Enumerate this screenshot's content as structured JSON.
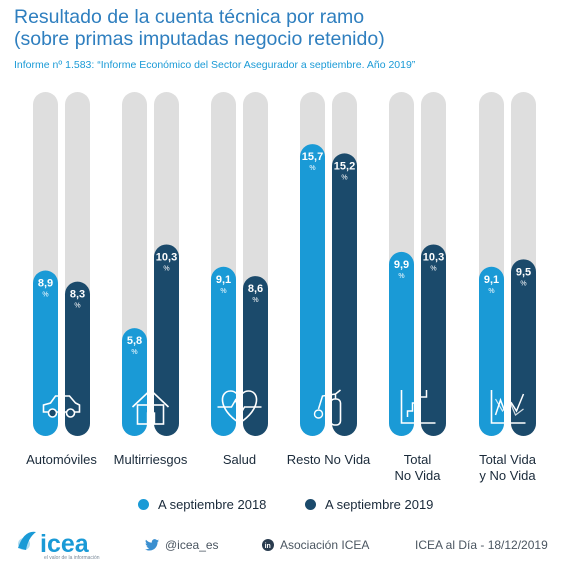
{
  "header": {
    "title_line1": "Resultado de la cuenta técnica por ramo",
    "title_line2": "(sobre primas imputadas negocio retenido)",
    "subtitle": "Informe nº 1.583: “Informe Económico del Sector Asegurador a septiembre. Año 2019”"
  },
  "colors": {
    "series_2018": "#1a9ad6",
    "series_2019": "#1b4a6b",
    "track": "#dedede",
    "icon": "#ffffff"
  },
  "chart_data": {
    "type": "bar",
    "categories": [
      "Automóviles",
      "Multirriesgos",
      "Salud",
      "Resto No Vida",
      "Total No Vida",
      "Total Vida y No Vida"
    ],
    "category_lines": [
      [
        "Automóviles"
      ],
      [
        "Multirriesgos"
      ],
      [
        "Salud"
      ],
      [
        "Resto No Vida"
      ],
      [
        "Total",
        "No Vida"
      ],
      [
        "Total Vida",
        "y No Vida"
      ]
    ],
    "category_icons": [
      "car-icon",
      "house-icon",
      "heart-pulse-icon",
      "fire-extinguisher-icon",
      "rising-chart-icon",
      "zigzag-chart-icon"
    ],
    "value_unit": "%",
    "series": [
      {
        "name": "A septiembre 2018",
        "values": [
          8.9,
          5.8,
          9.1,
          15.7,
          9.9,
          9.1
        ],
        "labels": [
          "8,9",
          "5,8",
          "9,1",
          "15,7",
          "9,9",
          "9,1"
        ]
      },
      {
        "name": "A septiembre 2019",
        "values": [
          8.3,
          10.3,
          8.6,
          15.2,
          10.3,
          9.5
        ],
        "labels": [
          "8,3",
          "10,3",
          "8,6",
          "15,2",
          "10,3",
          "9,5"
        ]
      }
    ],
    "ylim": [
      0,
      18.5
    ],
    "grid": false,
    "legend_position": "bottom"
  },
  "legend": {
    "item1": "A septiembre 2018",
    "item2": "A septiembre 2019"
  },
  "footer": {
    "logo_text": "icea",
    "logo_tagline": "el valor de la información",
    "twitter": "@icea_es",
    "linkedin": "Asociación ICEA",
    "date": "ICEA al Día - 18/12/2019"
  }
}
